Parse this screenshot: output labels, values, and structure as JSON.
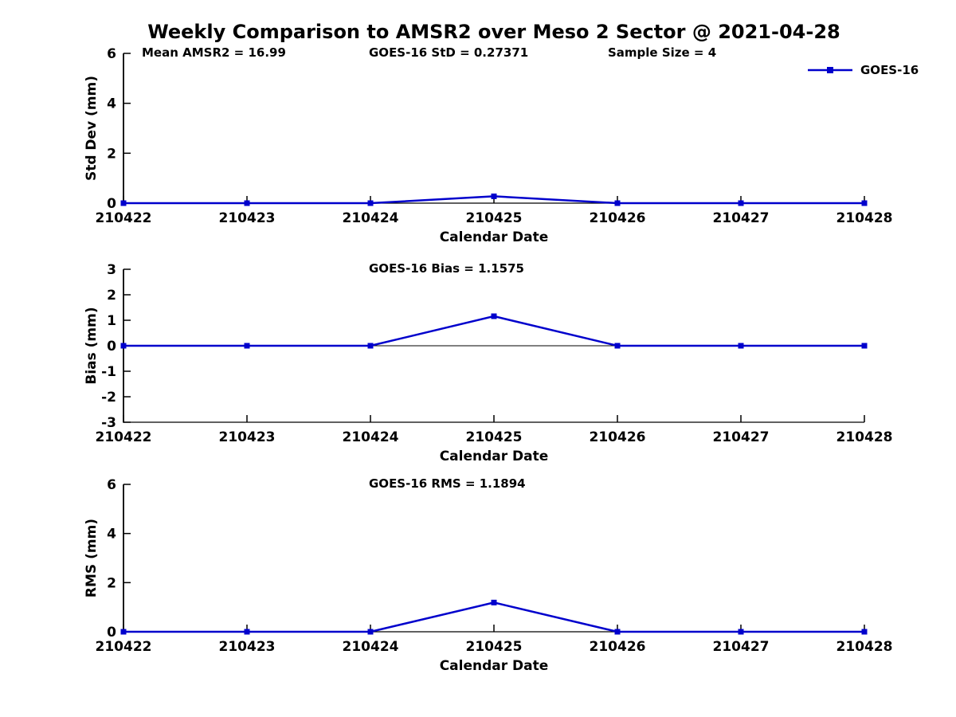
{
  "chart_data": {
    "type": "line",
    "title": "Weekly Comparison to AMSR2 over Meso 2 Sector @ 2021-04-28",
    "xlabel": "Calendar Date",
    "x_categories": [
      "210422",
      "210423",
      "210424",
      "210425",
      "210426",
      "210427",
      "210428"
    ],
    "line_color": "#0000CC",
    "marker": "square",
    "legend": {
      "label": "GOES-16",
      "position": "top-right"
    },
    "subplots": [
      {
        "id": "std-dev",
        "ylabel": "Std Dev (mm)",
        "ylim": [
          0,
          6
        ],
        "yticks": [
          0,
          2,
          4,
          6
        ],
        "zero_line": false,
        "values": [
          0,
          0,
          0,
          0.27371,
          0,
          0,
          0
        ],
        "annotations": [
          {
            "text": "Mean AMSR2 = 16.99",
            "x": 178
          },
          {
            "text": "GOES-16 StD = 0.27371",
            "x": 463
          },
          {
            "text": "Sample Size = 4",
            "x": 763
          }
        ]
      },
      {
        "id": "bias",
        "ylabel": "Bias (mm)",
        "ylim": [
          -3,
          3
        ],
        "yticks": [
          3,
          2,
          1,
          0,
          -1,
          -2,
          -3
        ],
        "zero_line": true,
        "values": [
          0,
          0,
          0,
          1.1575,
          0,
          0,
          0
        ],
        "annotations": [
          {
            "text": "GOES-16 Bias  = 1.1575",
            "x": 463
          }
        ]
      },
      {
        "id": "rms",
        "ylabel": "RMS (mm)",
        "ylim": [
          0,
          6
        ],
        "yticks": [
          0,
          2,
          4,
          6
        ],
        "zero_line": false,
        "values": [
          0,
          0,
          0,
          1.1894,
          0,
          0,
          0
        ],
        "annotations": [
          {
            "text": "GOES-16 RMS = 1.1894",
            "x": 463
          }
        ]
      }
    ]
  }
}
